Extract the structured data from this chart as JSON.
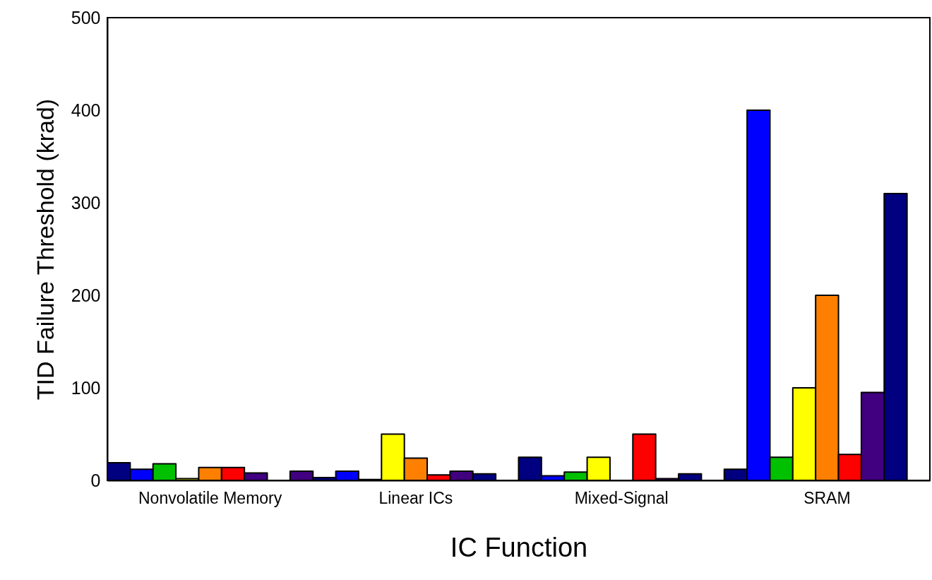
{
  "chart_data": {
    "type": "bar",
    "xlabel": "IC Function",
    "ylabel": "TID Failure Threshold (krad)",
    "categories": [
      "Nonvolatile Memory",
      "Linear ICs",
      "Mixed-Signal",
      "SRAM"
    ],
    "series": [
      {
        "color": "#000080",
        "values": [
          19,
          3,
          25,
          12
        ]
      },
      {
        "color": "#0000ff",
        "values": [
          12,
          10,
          5,
          400
        ]
      },
      {
        "color": "#00c000",
        "values": [
          18,
          1,
          9,
          25
        ]
      },
      {
        "color": "#ffff00",
        "values": [
          2,
          50,
          25,
          100
        ]
      },
      {
        "color": "#ff8000",
        "values": [
          14,
          24,
          null,
          200
        ]
      },
      {
        "color": "#ff0000",
        "values": [
          14,
          6,
          50,
          28
        ]
      },
      {
        "color": "#400080",
        "values": [
          8,
          10,
          2,
          95
        ]
      },
      {
        "color": "#000080",
        "values": [
          null,
          7,
          7,
          310
        ]
      },
      {
        "color": "#400080",
        "values": [
          10,
          null,
          null,
          null
        ]
      }
    ],
    "ylim": [
      0,
      500
    ],
    "yticks": [
      0,
      100,
      200,
      300,
      400,
      500
    ],
    "grid": false,
    "legend": false
  }
}
